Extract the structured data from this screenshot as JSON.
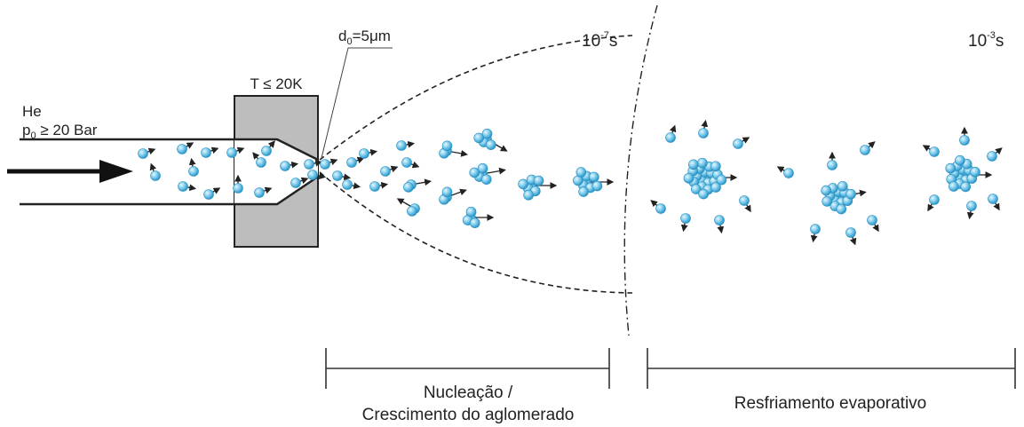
{
  "labels": {
    "gas": "He",
    "pressure": {
      "symbol": "p",
      "subscript": "0",
      "rest": " ≥ 20 Bar"
    },
    "temperature": "T ≤ 20K",
    "diameter": {
      "symbol": "d",
      "subscript": "0",
      "rest": "=5μm"
    },
    "time_nucleation": {
      "base": "10",
      "exponent": "-7",
      "unit": "s"
    },
    "time_evaporation": {
      "base": "10",
      "exponent": "-3",
      "unit": "s"
    },
    "stage_1": [
      "Nucleação /",
      "Crescimento do aglomerado"
    ],
    "stage_2": "Resfriamento evaporativo"
  }
}
